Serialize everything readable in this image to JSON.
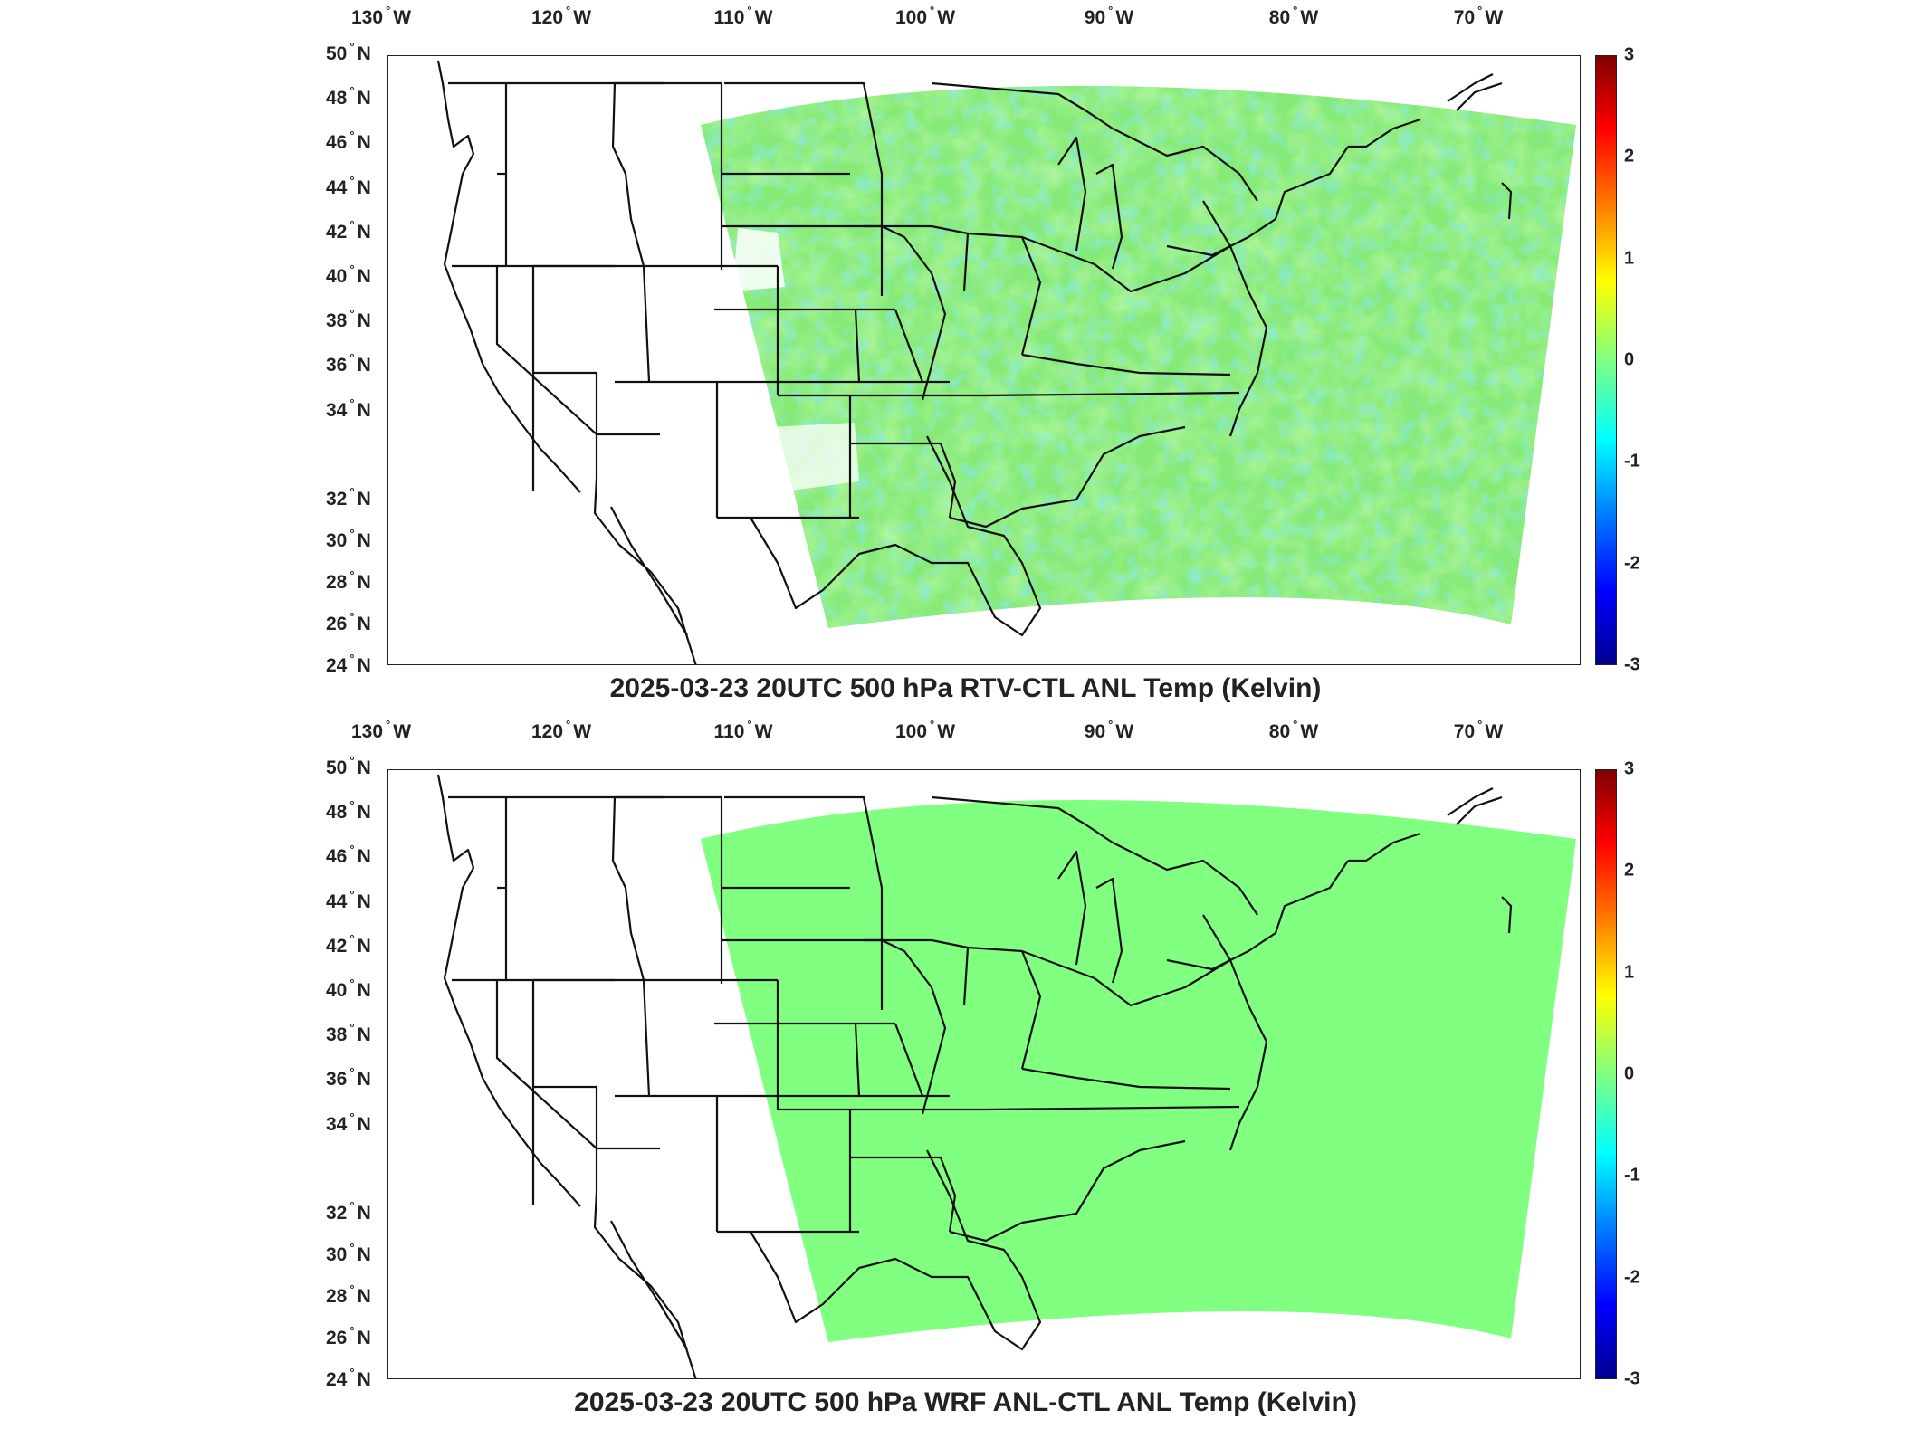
{
  "shared_axes": {
    "lon_labels": [
      {
        "deg": "130",
        "hemi": "W"
      },
      {
        "deg": "120",
        "hemi": "W"
      },
      {
        "deg": "110",
        "hemi": "W"
      },
      {
        "deg": "100",
        "hemi": "W"
      },
      {
        "deg": "90",
        "hemi": "W"
      },
      {
        "deg": "80",
        "hemi": "W"
      },
      {
        "deg": "70",
        "hemi": "W"
      }
    ],
    "lat_labels": [
      {
        "deg": "50",
        "hemi": "N"
      },
      {
        "deg": "48",
        "hemi": "N"
      },
      {
        "deg": "46",
        "hemi": "N"
      },
      {
        "deg": "44",
        "hemi": "N"
      },
      {
        "deg": "42",
        "hemi": "N"
      },
      {
        "deg": "40",
        "hemi": "N"
      },
      {
        "deg": "38",
        "hemi": "N"
      },
      {
        "deg": "36",
        "hemi": "N"
      },
      {
        "deg": "34",
        "hemi": "N"
      },
      {
        "deg": "32",
        "hemi": "N"
      },
      {
        "deg": "30",
        "hemi": "N"
      },
      {
        "deg": "28",
        "hemi": "N"
      },
      {
        "deg": "26",
        "hemi": "N"
      },
      {
        "deg": "24",
        "hemi": "N"
      }
    ],
    "colorbar_ticks": [
      "3",
      "2",
      "1",
      "0",
      "-1",
      "-2",
      "-3"
    ],
    "colorbar_range": [
      -3,
      3
    ],
    "colormap": "jet"
  },
  "panels": [
    {
      "title": "2025-03-23 20UTC 500 hPa RTV-CTL ANL Temp (Kelvin)",
      "field_description": "noisy",
      "field_colors": [
        "#7cf27a",
        "#9cf05e",
        "#c6f23c",
        "#e6f02a",
        "#4fe7b0",
        "#35d9d3"
      ]
    },
    {
      "title": "2025-03-23 20UTC 500 hPa WRF ANL-CTL ANL Temp (Kelvin)",
      "field_description": "uniform",
      "field_colors": [
        "#80ff80"
      ]
    }
  ]
}
